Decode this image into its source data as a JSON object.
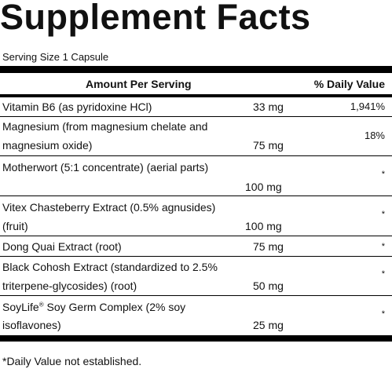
{
  "title": "Supplement Facts",
  "serving_size": "Serving Size 1 Capsule",
  "header": {
    "amount": "Amount Per Serving",
    "daily_value": "% Daily Value"
  },
  "rows": [
    {
      "lines": [
        "Vitamin B6 (as pyridoxine HCl)"
      ],
      "amount": "33 mg",
      "dv": "1,941%"
    },
    {
      "lines": [
        "Magnesium (from magnesium chelate and",
        "magnesium oxide)"
      ],
      "amount": "75 mg",
      "dv": "18%"
    },
    {
      "lines": [
        "Motherwort (5:1 concentrate) (aerial parts)"
      ],
      "amount": "100 mg",
      "dv": "*"
    },
    {
      "lines": [
        "Vitex Chasteberry Extract (0.5% agnusides)",
        "(fruit)"
      ],
      "amount": "100 mg",
      "dv": "*"
    },
    {
      "lines": [
        "Dong Quai Extract (root)"
      ],
      "amount": "75 mg",
      "dv": "*"
    },
    {
      "lines": [
        "Black Cohosh Extract (standardized to 2.5%",
        "triterpene-glycosides) (root)"
      ],
      "amount": "50 mg",
      "dv": "*"
    },
    {
      "lines": [
        "SoyLife",
        "Soy Germ Complex (2% soy",
        "isoflavones)"
      ],
      "registered": "®",
      "amount": "25 mg",
      "dv": "*"
    }
  ],
  "footnote": "*Daily Value not established."
}
